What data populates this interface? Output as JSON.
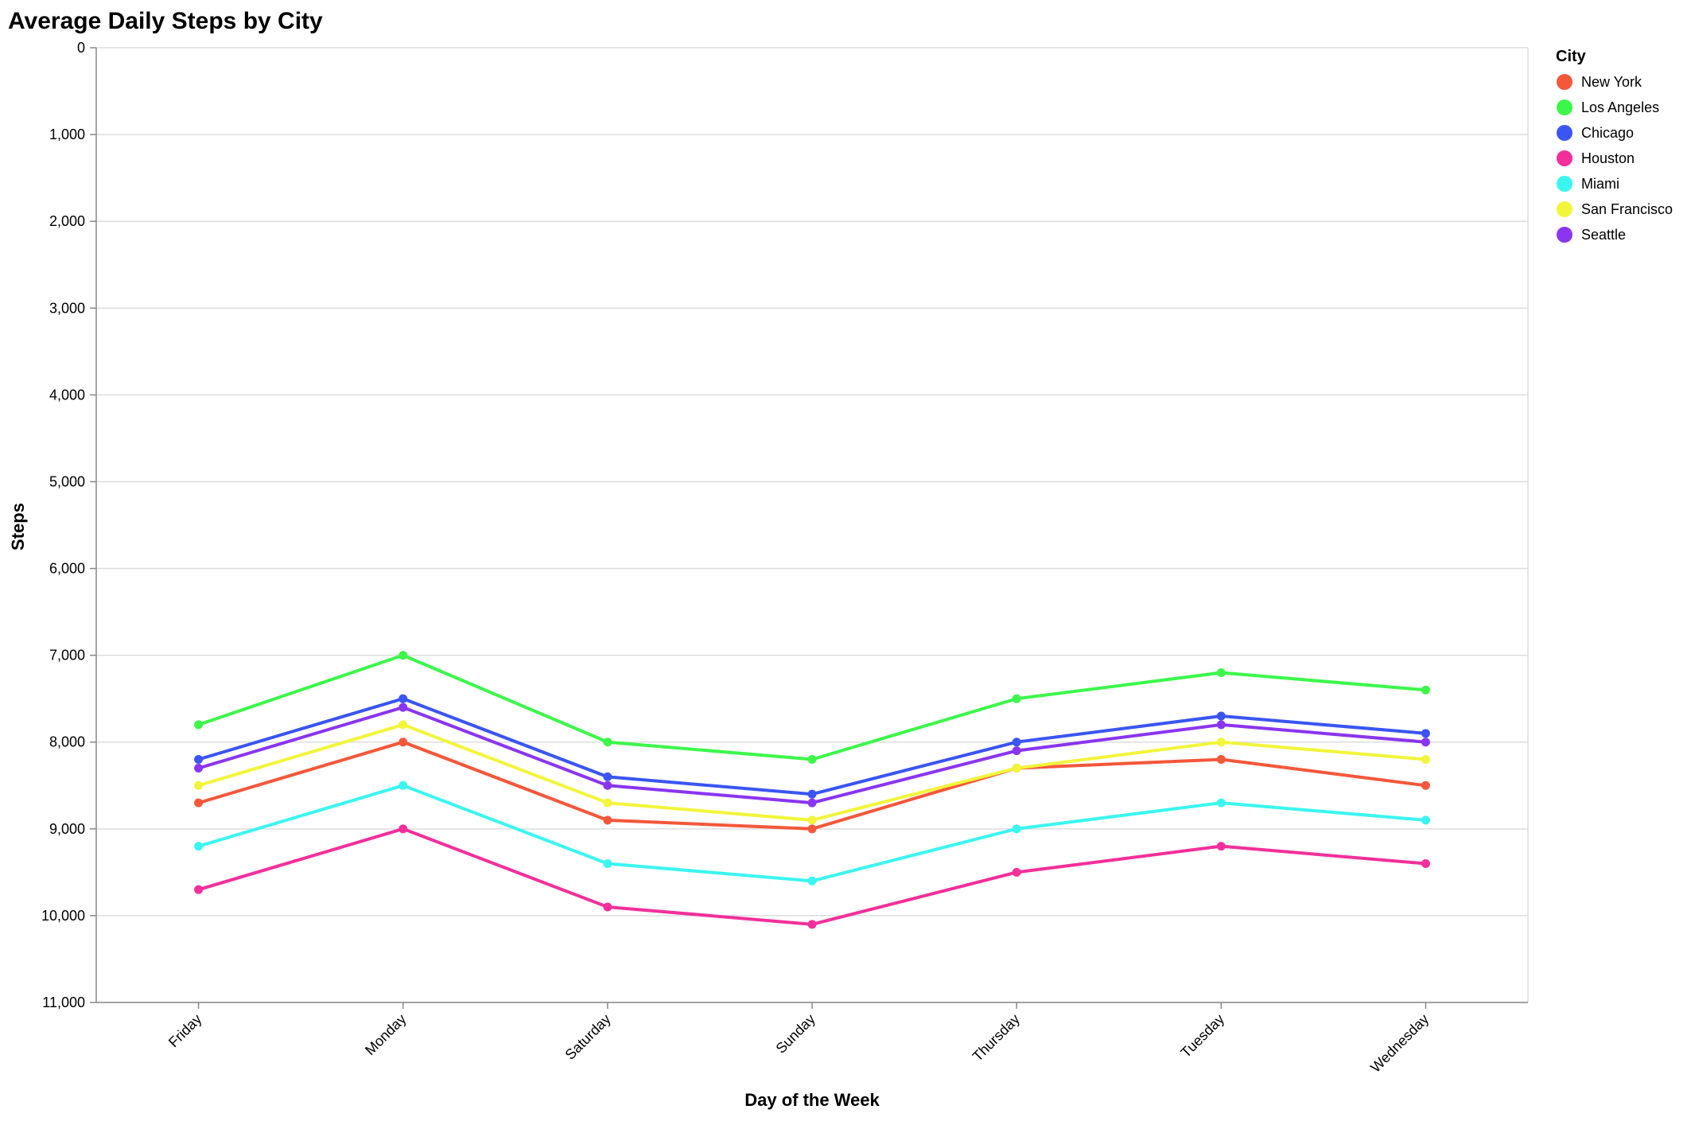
{
  "chart_data": {
    "type": "line",
    "title": "Average Daily Steps by City",
    "xlabel": "Day of the Week",
    "ylabel": "Steps",
    "categories": [
      "Friday",
      "Monday",
      "Saturday",
      "Sunday",
      "Thursday",
      "Tuesday",
      "Wednesday"
    ],
    "ylim": [
      0,
      11000
    ],
    "y_reversed": true,
    "y_ticks": [
      0,
      1000,
      2000,
      3000,
      4000,
      5000,
      6000,
      7000,
      8000,
      9000,
      10000,
      11000
    ],
    "y_tick_labels": [
      "0",
      "1,000",
      "2,000",
      "3,000",
      "4,000",
      "5,000",
      "6,000",
      "7,000",
      "8,000",
      "9,000",
      "10,000",
      "11,000"
    ],
    "grid": true,
    "legend": {
      "title": "City",
      "placement": "top-right"
    },
    "series": [
      {
        "name": "New York",
        "color": "#f4573a",
        "values": [
          8700,
          8000,
          8900,
          9000,
          8300,
          8200,
          8500
        ]
      },
      {
        "name": "Los Angeles",
        "color": "#3cf74a",
        "values": [
          7800,
          7000,
          8000,
          8200,
          7500,
          7200,
          7400
        ]
      },
      {
        "name": "Chicago",
        "color": "#3a55f2",
        "values": [
          8200,
          7500,
          8400,
          8600,
          8000,
          7700,
          7900
        ]
      },
      {
        "name": "Houston",
        "color": "#f22f9a",
        "values": [
          9700,
          9000,
          9900,
          10100,
          9500,
          9200,
          9400
        ]
      },
      {
        "name": "Miami",
        "color": "#3bf5f0",
        "values": [
          9200,
          8500,
          9400,
          9600,
          9000,
          8700,
          8900
        ]
      },
      {
        "name": "San Francisco",
        "color": "#f2f53a",
        "values": [
          8500,
          7800,
          8700,
          8900,
          8300,
          8000,
          8200
        ]
      },
      {
        "name": "Seattle",
        "color": "#8a35f0",
        "values": [
          8300,
          7600,
          8500,
          8700,
          8100,
          7800,
          8000
        ]
      }
    ]
  }
}
